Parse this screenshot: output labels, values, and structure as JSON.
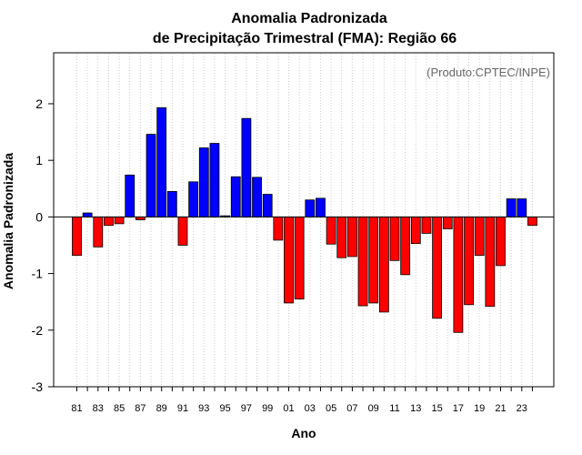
{
  "chart_data": {
    "type": "bar",
    "title": "Anomalia Padronizada",
    "subtitle": "de Precipitação Trimestral (FMA): Região 66",
    "credit": "(Produto:CPTEC/INPE)",
    "xlabel": "Ano",
    "ylabel": "Anomalia Padronizada",
    "ylim": [
      -3,
      2.9
    ],
    "yticks": [
      -3,
      -2,
      -1,
      0,
      1,
      2
    ],
    "ytick_labels": [
      "-3",
      "-2",
      "-1",
      "0",
      "1",
      "2"
    ],
    "xtick_labels": [
      "81",
      "83",
      "85",
      "87",
      "89",
      "91",
      "93",
      "95",
      "97",
      "99",
      "01",
      "03",
      "05",
      "07",
      "09",
      "11",
      "13",
      "15",
      "17",
      "19",
      "21",
      "23"
    ],
    "xtick_every": 2,
    "grid": "vertical dotted",
    "categories": [
      "1981",
      "1982",
      "1983",
      "1984",
      "1985",
      "1986",
      "1987",
      "1988",
      "1989",
      "1990",
      "1991",
      "1992",
      "1993",
      "1994",
      "1995",
      "1996",
      "1997",
      "1998",
      "1999",
      "2000",
      "2001",
      "2002",
      "2003",
      "2004",
      "2005",
      "2006",
      "2007",
      "2008",
      "2009",
      "2010",
      "2011",
      "2012",
      "2013",
      "2014",
      "2015",
      "2016",
      "2017",
      "2018",
      "2019",
      "2020",
      "2021",
      "2022",
      "2023",
      "2024"
    ],
    "values": [
      -0.68,
      0.07,
      -0.53,
      -0.15,
      -0.12,
      0.74,
      -0.05,
      1.46,
      1.93,
      0.45,
      -0.5,
      0.62,
      1.22,
      1.3,
      0.02,
      0.71,
      1.74,
      0.7,
      0.4,
      -0.41,
      -1.52,
      -1.45,
      0.3,
      0.33,
      -0.48,
      -0.72,
      -0.7,
      -1.57,
      -1.52,
      -1.68,
      -0.77,
      -1.02,
      -0.47,
      -0.29,
      -1.79,
      -0.21,
      -2.04,
      -1.55,
      -0.68,
      -1.58,
      -0.86,
      0.32,
      0.32,
      -0.15
    ],
    "colors": {
      "positive": "#0000ff",
      "negative": "#ff0000",
      "stroke": "#000000",
      "grid": "#cccccc",
      "credit": "#666666"
    }
  }
}
